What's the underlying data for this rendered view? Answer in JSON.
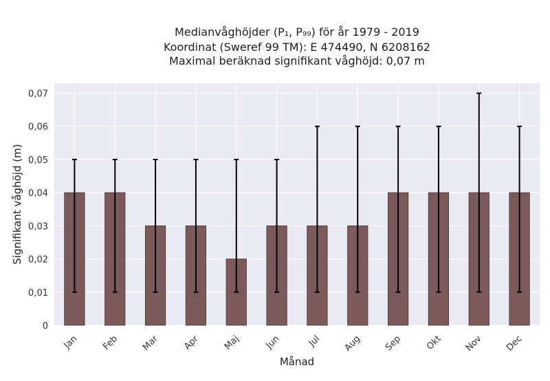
{
  "chart_data": {
    "type": "bar",
    "title_lines": [
      "Medianvåghöjder (P₁, P₉₉) för år 1979 - 2019",
      "Koordinat (Sweref 99 TM): E 474490, N 6208162",
      "Maximal beräknad signifikant våghöjd: 0,07 m"
    ],
    "xlabel": "Månad",
    "ylabel": "Signifikant våghöjd (m)",
    "categories": [
      "Jan",
      "Feb",
      "Mar",
      "Apr",
      "Maj",
      "Jun",
      "Jul",
      "Aug",
      "Sep",
      "Okt",
      "Nov",
      "Dec"
    ],
    "series": [
      {
        "values": [
          0.04,
          0.04,
          0.03,
          0.03,
          0.02,
          0.03,
          0.03,
          0.03,
          0.04,
          0.04,
          0.04,
          0.04
        ],
        "p1": [
          0.01,
          0.01,
          0.01,
          0.01,
          0.01,
          0.01,
          0.01,
          0.01,
          0.01,
          0.01,
          0.01,
          0.01
        ],
        "p99": [
          0.05,
          0.05,
          0.05,
          0.05,
          0.05,
          0.05,
          0.06,
          0.06,
          0.06,
          0.06,
          0.07,
          0.06
        ]
      }
    ],
    "ylim": [
      0,
      0.073
    ],
    "yticks": [
      0,
      0.01,
      0.02,
      0.03,
      0.04,
      0.05,
      0.06,
      0.07
    ],
    "ytick_labels": [
      "0",
      "0,01",
      "0,02",
      "0,03",
      "0,04",
      "0,05",
      "0,06",
      "0,07"
    ],
    "grid": true,
    "colors": {
      "bar": "#7a5a5a",
      "bar_edge": "#4a3535",
      "error": "#000000",
      "plot_bg": "#eaeaf2",
      "grid": "#ffffff"
    }
  }
}
